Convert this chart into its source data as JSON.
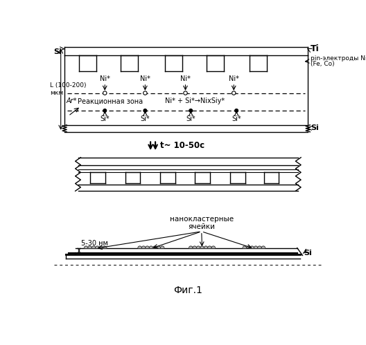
{
  "background_color": "#ffffff",
  "line_color": "#000000",
  "labels": {
    "Si_top": "Si",
    "Ti": "Ti",
    "pin_label": "pin-электроды Ni",
    "fe_co": "(Fe, Co)",
    "L_label": "L (100-200)\nмкм",
    "Ar_label": "Ar*",
    "reaction_zone": "Реакционная зона",
    "reaction_eq": "Ni* + Si*→NixSiy*",
    "Ni_star": "Ni*",
    "Si_star": "Si*",
    "Si_bottom": "Si",
    "t_label": "t~ 10-50с",
    "nm_label": "5-30 нм",
    "nanoclusters": "нанокластерные\nячейки",
    "Si_nano": "Si",
    "fig_label": "Фиг.1"
  }
}
